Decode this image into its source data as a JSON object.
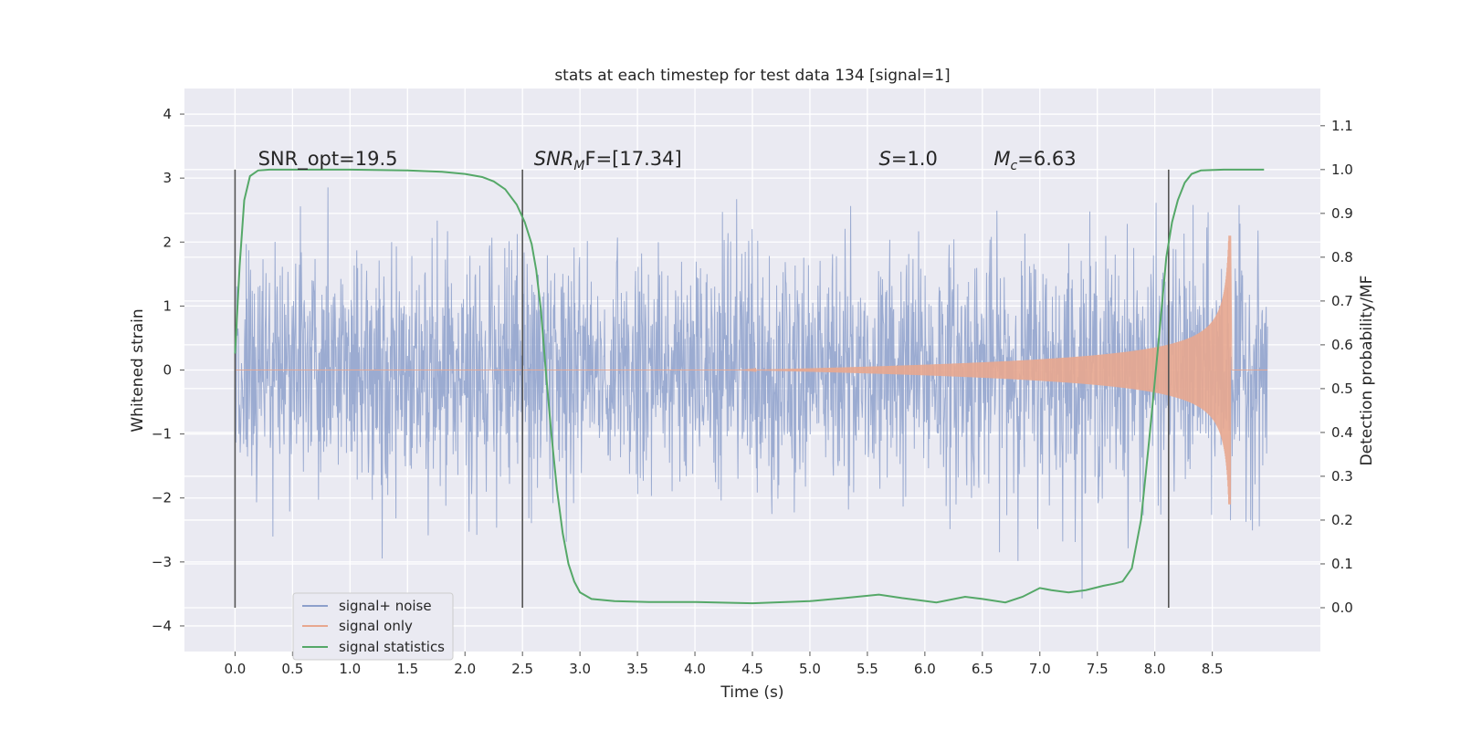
{
  "chart_data": {
    "type": "line",
    "title": "stats at each timestep for test data 134 [signal=1]",
    "xlabel": "Time (s)",
    "ylabel": "Whitened strain",
    "y2label": "Detection probability/MF",
    "xlim": [
      -0.44,
      9.44
    ],
    "ylim": [
      -4.4,
      4.4
    ],
    "y2lim": [
      -0.1,
      1.185
    ],
    "xticks": [
      "0.0",
      "0.5",
      "1.0",
      "1.5",
      "2.0",
      "2.5",
      "3.0",
      "3.5",
      "4.0",
      "4.5",
      "5.0",
      "5.5",
      "6.0",
      "6.5",
      "7.0",
      "7.5",
      "8.0",
      "8.5"
    ],
    "yticks": [
      "4",
      "3",
      "2",
      "1",
      "0",
      "−1",
      "−2",
      "−3",
      "−4"
    ],
    "y2ticks": [
      "1.1",
      "1.0",
      "0.9",
      "0.8",
      "0.7",
      "0.6",
      "0.5",
      "0.4",
      "0.3",
      "0.2",
      "0.1",
      "0.0"
    ],
    "grid": true,
    "legend_position": "lower-left",
    "series": [
      {
        "name": "signal+ noise",
        "color": "#8da0cb",
        "note": "dense whitened noise, amplitude ~±1.3 typical, peaks to ±4",
        "t_range": [
          0.0,
          8.98
        ]
      },
      {
        "name": "signal only",
        "color": "#e8a78f",
        "note": "chirp, envelope grows from ~0 at 4.4 s to ~2.1 at merger 8.65 s",
        "t_range": [
          4.4,
          8.66
        ]
      },
      {
        "name": "signal statistics",
        "color": "#55a868",
        "axis": "right",
        "x": [
          0.0,
          0.04,
          0.08,
          0.13,
          0.2,
          0.3,
          0.5,
          1.0,
          1.5,
          1.8,
          2.0,
          2.15,
          2.25,
          2.35,
          2.45,
          2.52,
          2.58,
          2.62,
          2.66,
          2.7,
          2.75,
          2.8,
          2.85,
          2.9,
          2.95,
          3.0,
          3.1,
          3.3,
          3.6,
          4.0,
          4.5,
          5.0,
          5.3,
          5.6,
          5.8,
          6.1,
          6.35,
          6.5,
          6.7,
          6.85,
          7.0,
          7.1,
          7.25,
          7.4,
          7.55,
          7.65,
          7.72,
          7.8,
          7.88,
          7.95,
          8.03,
          8.1,
          8.15,
          8.2,
          8.26,
          8.32,
          8.4,
          8.6,
          8.95
        ],
        "values": [
          0.58,
          0.78,
          0.93,
          0.985,
          0.998,
          1.0,
          1.0,
          1.0,
          0.998,
          0.995,
          0.99,
          0.983,
          0.973,
          0.955,
          0.92,
          0.88,
          0.83,
          0.77,
          0.68,
          0.55,
          0.4,
          0.27,
          0.17,
          0.1,
          0.06,
          0.035,
          0.02,
          0.015,
          0.013,
          0.013,
          0.01,
          0.015,
          0.022,
          0.03,
          0.022,
          0.012,
          0.025,
          0.02,
          0.012,
          0.025,
          0.045,
          0.04,
          0.035,
          0.04,
          0.05,
          0.055,
          0.06,
          0.09,
          0.2,
          0.38,
          0.6,
          0.8,
          0.88,
          0.93,
          0.97,
          0.99,
          0.998,
          1.0,
          1.0
        ]
      }
    ],
    "vlines": [
      0.0,
      2.5,
      8.12
    ],
    "annotations": [
      {
        "id": "snr-opt",
        "x": 0.2,
        "text": "SNR_opt=19.5"
      },
      {
        "id": "snr-mf",
        "x": 2.6,
        "text": "SNR",
        "sub": "M",
        "rest": "F=[17.34]"
      },
      {
        "id": "s-value",
        "x": 5.6,
        "text": "S",
        "rest": "=1.0"
      },
      {
        "id": "mc-value",
        "x": 6.6,
        "text": "M",
        "sub": "c",
        "rest": "=6.63"
      }
    ],
    "annotation_y": 3.2
  }
}
